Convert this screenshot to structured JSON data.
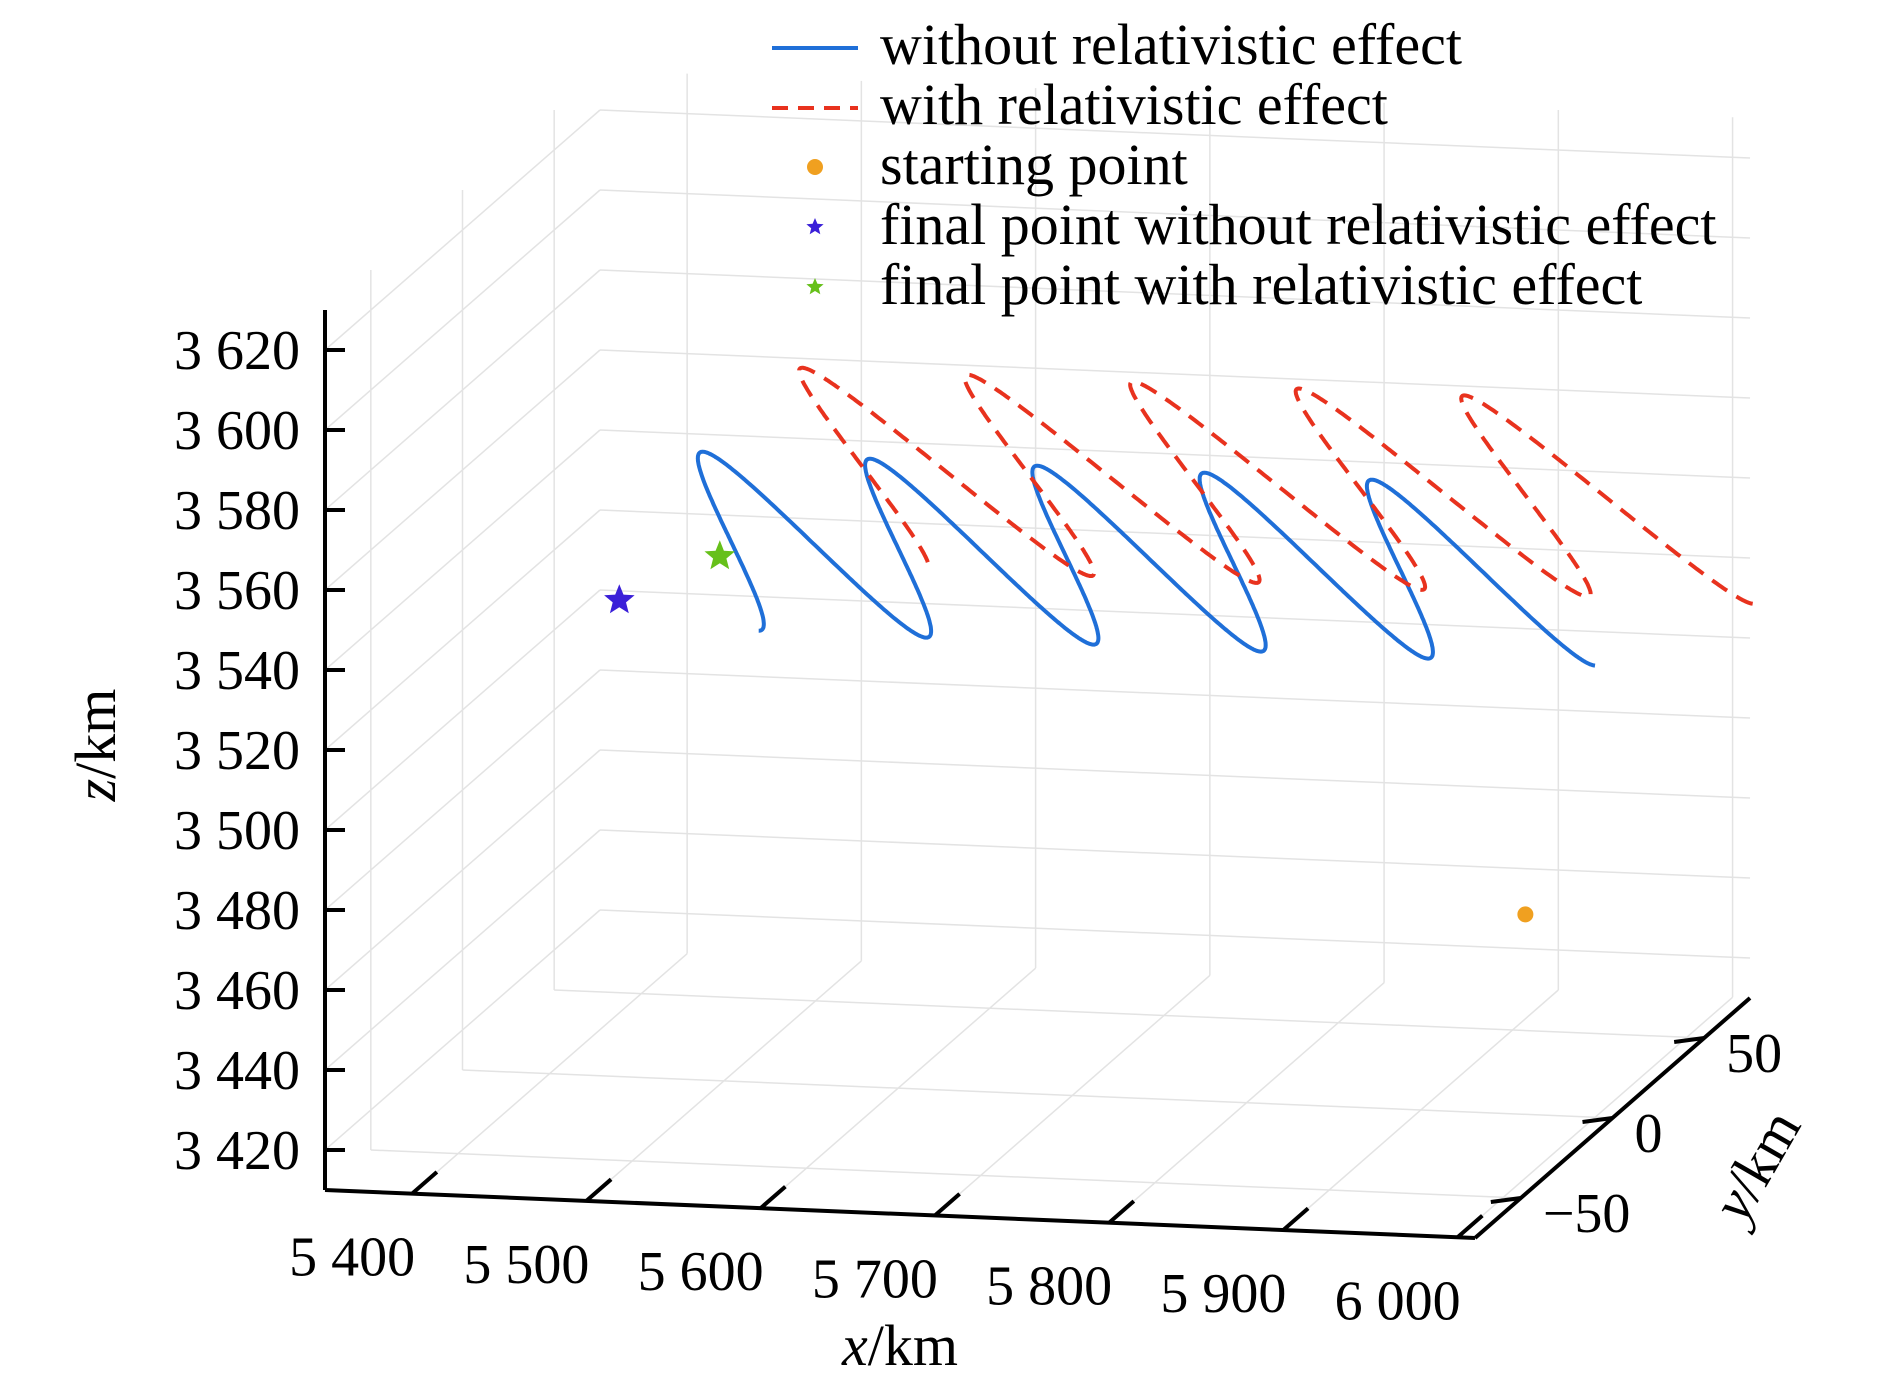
{
  "chart_data": {
    "type": "line",
    "projection": "3d",
    "xlabel_var": "x",
    "xlabel_unit": "/km",
    "ylabel_var": "y",
    "ylabel_unit": "/km",
    "zlabel_var": "z",
    "zlabel_unit": "/km",
    "x_ticks": [
      "5 400",
      "5 500",
      "5 600",
      "5 700",
      "5 800",
      "5 900",
      "6 000"
    ],
    "x_tick_values": [
      5400,
      5500,
      5600,
      5700,
      5800,
      5900,
      6000
    ],
    "y_ticks": [
      "−50",
      "0",
      "50"
    ],
    "y_tick_values": [
      -50,
      0,
      50
    ],
    "z_ticks": [
      "3 620",
      "3 600",
      "3 580",
      "3 560",
      "3 540",
      "3 520",
      "3 500",
      "3 480",
      "3 460",
      "3 440",
      "3 420"
    ],
    "z_tick_values": [
      3620,
      3600,
      3580,
      3560,
      3540,
      3520,
      3500,
      3480,
      3460,
      3440,
      3420
    ],
    "xlim": [
      5350,
      6010
    ],
    "ylim": [
      -75,
      75
    ],
    "zlim": [
      3410,
      3630
    ],
    "grid": true,
    "legend_position": "top",
    "series": [
      {
        "name": "without relativistic effect",
        "style": "solid",
        "color": "#1f6fd8",
        "center_y": 0,
        "radius_y": 38,
        "center_z": 3545,
        "radius_z": 38,
        "x_start": 5960,
        "x_end": 5480,
        "turns": 5.0
      },
      {
        "name": "with relativistic effect",
        "style": "dashed",
        "color": "#e8321e",
        "center_y": 30,
        "radius_y": 56,
        "center_z": 3552,
        "radius_z": 48,
        "x_start": 6000,
        "x_end": 5525,
        "turns": 5.0
      }
    ],
    "markers": [
      {
        "name": "starting point",
        "shape": "circle",
        "color": "#f0a020",
        "x": 5960,
        "y": 0,
        "z": 3460
      },
      {
        "name": "final point without relativistic effect",
        "shape": "star",
        "color": "#3a1fd8",
        "x": 5480,
        "y": -38,
        "z": 3545
      },
      {
        "name": "final point with relativistic effect",
        "shape": "star",
        "color": "#66c01a",
        "x": 5525,
        "y": -26,
        "z": 3552
      }
    ]
  }
}
